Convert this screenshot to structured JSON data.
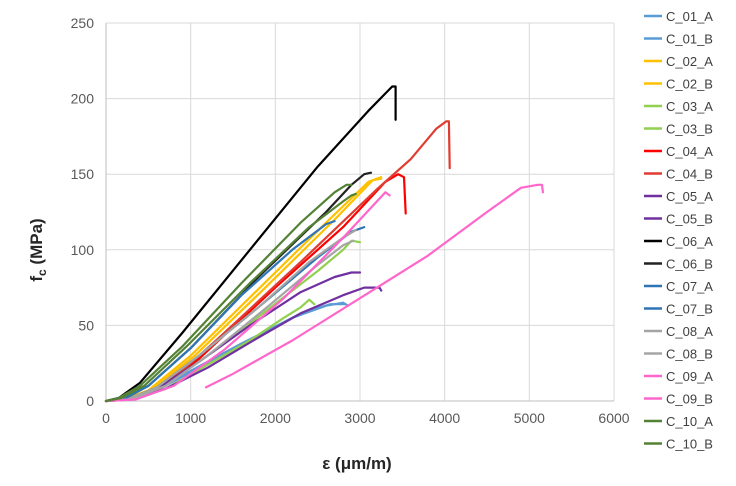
{
  "chart_data": {
    "type": "line",
    "title": "",
    "xlabel": "ε (μm/m)",
    "ylabel": "f",
    "ylabel_subscript": "c",
    "ylabel_unit": " (MPa)",
    "xlim": [
      0,
      6000
    ],
    "ylim": [
      0,
      250
    ],
    "xticks": [
      0,
      1000,
      2000,
      3000,
      4000,
      5000,
      6000
    ],
    "yticks": [
      0,
      50,
      100,
      150,
      200,
      250
    ],
    "grid": "major both axes",
    "legend_position": "right",
    "series": [
      {
        "name": "C_01_A",
        "color": "#5b9bd5",
        "points": [
          [
            0,
            0
          ],
          [
            200,
            1
          ],
          [
            500,
            6
          ],
          [
            1000,
            20
          ],
          [
            1600,
            38
          ],
          [
            2200,
            55
          ],
          [
            2600,
            63
          ],
          [
            2800,
            65
          ],
          [
            2860,
            63
          ]
        ]
      },
      {
        "name": "C_01_B",
        "color": "#5b9bd5",
        "points": [
          [
            0,
            0
          ],
          [
            250,
            1
          ],
          [
            600,
            7
          ],
          [
            1100,
            22
          ],
          [
            1700,
            40
          ],
          [
            2300,
            58
          ],
          [
            2650,
            64
          ],
          [
            2820,
            64
          ]
        ]
      },
      {
        "name": "C_02_A",
        "color": "#ffc000",
        "points": [
          [
            0,
            0
          ],
          [
            200,
            1
          ],
          [
            500,
            7
          ],
          [
            1000,
            30
          ],
          [
            1800,
            74
          ],
          [
            2600,
            118
          ],
          [
            3100,
            145
          ],
          [
            3250,
            148
          ]
        ]
      },
      {
        "name": "C_02_B",
        "color": "#ffc000",
        "points": [
          [
            0,
            0
          ],
          [
            220,
            1
          ],
          [
            550,
            8
          ],
          [
            1050,
            30
          ],
          [
            1900,
            76
          ],
          [
            2700,
            120
          ],
          [
            3150,
            146
          ],
          [
            3250,
            147
          ]
        ]
      },
      {
        "name": "C_03_A",
        "color": "#92d050",
        "points": [
          [
            0,
            0
          ],
          [
            300,
            1
          ],
          [
            700,
            8
          ],
          [
            1200,
            24
          ],
          [
            1700,
            40
          ],
          [
            2100,
            55
          ],
          [
            2300,
            62
          ],
          [
            2400,
            67
          ],
          [
            2460,
            64
          ]
        ]
      },
      {
        "name": "C_03_B",
        "color": "#92d050",
        "points": [
          [
            0,
            0
          ],
          [
            250,
            1
          ],
          [
            650,
            9
          ],
          [
            1200,
            30
          ],
          [
            1900,
            60
          ],
          [
            2500,
            86
          ],
          [
            2800,
            100
          ],
          [
            2900,
            106
          ],
          [
            3000,
            105
          ]
        ]
      },
      {
        "name": "C_04_A",
        "color": "#ff0000",
        "points": [
          [
            0,
            0
          ],
          [
            250,
            1
          ],
          [
            600,
            8
          ],
          [
            1100,
            28
          ],
          [
            2000,
            75
          ],
          [
            2800,
            115
          ],
          [
            3300,
            145
          ],
          [
            3450,
            150
          ],
          [
            3520,
            148
          ],
          [
            3540,
            124
          ]
        ]
      },
      {
        "name": "C_04_B",
        "color": "#e03c31",
        "points": [
          [
            0,
            0
          ],
          [
            300,
            1
          ],
          [
            700,
            10
          ],
          [
            1300,
            40
          ],
          [
            2300,
            92
          ],
          [
            3200,
            140
          ],
          [
            3600,
            160
          ],
          [
            3900,
            180
          ],
          [
            4020,
            185
          ],
          [
            4050,
            185
          ],
          [
            4060,
            154
          ]
        ]
      },
      {
        "name": "C_05_A",
        "color": "#7030a0",
        "points": [
          [
            0,
            0
          ],
          [
            300,
            1
          ],
          [
            700,
            8
          ],
          [
            1200,
            22
          ],
          [
            1800,
            42
          ],
          [
            2300,
            58
          ],
          [
            2800,
            70
          ],
          [
            3050,
            75
          ],
          [
            3230,
            75
          ],
          [
            3250,
            73
          ]
        ]
      },
      {
        "name": "C_05_B",
        "color": "#7030a0",
        "points": [
          [
            0,
            0
          ],
          [
            250,
            1
          ],
          [
            600,
            8
          ],
          [
            1100,
            26
          ],
          [
            1700,
            50
          ],
          [
            2300,
            72
          ],
          [
            2700,
            82
          ],
          [
            2900,
            85
          ],
          [
            3000,
            85
          ]
        ]
      },
      {
        "name": "C_06_A",
        "color": "#000000",
        "points": [
          [
            0,
            0
          ],
          [
            150,
            2
          ],
          [
            400,
            12
          ],
          [
            900,
            45
          ],
          [
            1700,
            100
          ],
          [
            2500,
            155
          ],
          [
            3100,
            192
          ],
          [
            3380,
            208
          ],
          [
            3420,
            208
          ],
          [
            3420,
            186
          ]
        ]
      },
      {
        "name": "C_06_B",
        "color": "#222222",
        "points": [
          [
            0,
            0
          ],
          [
            200,
            1
          ],
          [
            500,
            10
          ],
          [
            1000,
            35
          ],
          [
            1800,
            82
          ],
          [
            2600,
            125
          ],
          [
            2900,
            143
          ],
          [
            3050,
            150
          ],
          [
            3130,
            151
          ]
        ]
      },
      {
        "name": "C_07_A",
        "color": "#2e75b6",
        "points": [
          [
            0,
            0
          ],
          [
            200,
            1
          ],
          [
            500,
            10
          ],
          [
            1000,
            35
          ],
          [
            1600,
            70
          ],
          [
            2200,
            100
          ],
          [
            2600,
            117
          ],
          [
            2700,
            119
          ]
        ]
      },
      {
        "name": "C_07_B",
        "color": "#2e75b6",
        "points": [
          [
            0,
            0
          ],
          [
            250,
            1
          ],
          [
            600,
            9
          ],
          [
            1100,
            30
          ],
          [
            1800,
            62
          ],
          [
            2500,
            95
          ],
          [
            2900,
            112
          ],
          [
            3050,
            115
          ]
        ]
      },
      {
        "name": "C_08_A",
        "color": "#a5a5a5",
        "points": [
          [
            0,
            0
          ],
          [
            250,
            1
          ],
          [
            600,
            9
          ],
          [
            1100,
            30
          ],
          [
            1800,
            62
          ],
          [
            2400,
            92
          ],
          [
            2800,
            108
          ],
          [
            2950,
            113
          ]
        ]
      },
      {
        "name": "C_08_B",
        "color": "#a5a5a5",
        "points": [
          [
            0,
            0
          ],
          [
            300,
            1
          ],
          [
            700,
            10
          ],
          [
            1200,
            30
          ],
          [
            1900,
            62
          ],
          [
            2500,
            90
          ],
          [
            2800,
            103
          ],
          [
            2920,
            106
          ]
        ]
      },
      {
        "name": "C_09_A",
        "color": "#ff66cc",
        "points": [
          [
            1180,
            9
          ],
          [
            1500,
            18
          ],
          [
            2200,
            40
          ],
          [
            3000,
            68
          ],
          [
            3800,
            96
          ],
          [
            4500,
            125
          ],
          [
            4900,
            141
          ],
          [
            5100,
            143
          ],
          [
            5150,
            143
          ],
          [
            5160,
            138
          ]
        ]
      },
      {
        "name": "C_09_B",
        "color": "#ff66cc",
        "points": [
          [
            0,
            0
          ],
          [
            350,
            1
          ],
          [
            800,
            10
          ],
          [
            1400,
            34
          ],
          [
            2100,
            68
          ],
          [
            2800,
            108
          ],
          [
            3200,
            132
          ],
          [
            3300,
            138
          ],
          [
            3350,
            136
          ]
        ]
      },
      {
        "name": "C_10_A",
        "color": "#548235",
        "points": [
          [
            0,
            0
          ],
          [
            150,
            2
          ],
          [
            400,
            10
          ],
          [
            900,
            36
          ],
          [
            1600,
            78
          ],
          [
            2300,
            118
          ],
          [
            2700,
            138
          ],
          [
            2840,
            143
          ],
          [
            2900,
            143
          ]
        ]
      },
      {
        "name": "C_10_B",
        "color": "#548235",
        "points": [
          [
            0,
            0
          ],
          [
            180,
            2
          ],
          [
            450,
            10
          ],
          [
            950,
            36
          ],
          [
            1700,
            78
          ],
          [
            2400,
            115
          ],
          [
            2800,
            132
          ],
          [
            2900,
            136
          ],
          [
            2950,
            137
          ]
        ]
      }
    ]
  }
}
